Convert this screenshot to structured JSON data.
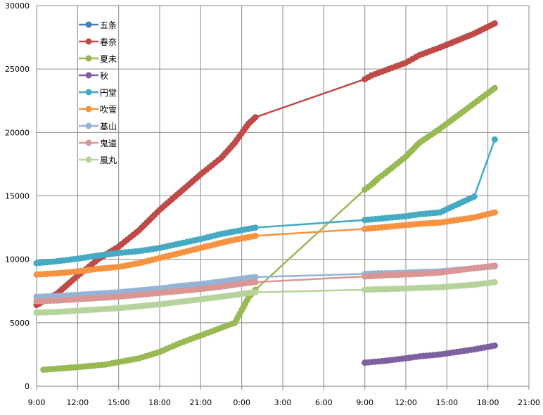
{
  "chart_data": {
    "type": "line",
    "title": "",
    "xlabel": "",
    "ylabel": "",
    "ylim": [
      0,
      30000
    ],
    "yticks": [
      0,
      5000,
      10000,
      15000,
      20000,
      25000,
      30000
    ],
    "xlim": [
      9,
      45
    ],
    "xticks": [
      9,
      12,
      15,
      18,
      21,
      24,
      27,
      30,
      33,
      36,
      39,
      42,
      45
    ],
    "xtick_labels": [
      "9:00",
      "12:00",
      "15:00",
      "18:00",
      "21:00",
      "0:00",
      "3:00",
      "6:00",
      "9:00",
      "12:00",
      "15:00",
      "18:00",
      "21:00"
    ],
    "grid": true,
    "legend_position": "top-left",
    "series": [
      {
        "name": "五条",
        "color": "#4a7ebb",
        "points": []
      },
      {
        "name": "春奈",
        "color": "#be4b48",
        "points": [
          [
            9.0,
            6400
          ],
          [
            10.5,
            7300
          ],
          [
            12.0,
            8700
          ],
          [
            13.5,
            10000
          ],
          [
            15.0,
            11000
          ],
          [
            16.5,
            12300
          ],
          [
            18.0,
            13900
          ],
          [
            19.5,
            15300
          ],
          [
            21.0,
            16700
          ],
          [
            22.5,
            18000
          ],
          [
            23.5,
            19200
          ],
          [
            24.1,
            20100
          ],
          [
            24.5,
            20700
          ],
          [
            25.0,
            21200
          ],
          [
            33.0,
            24200
          ],
          [
            33.5,
            24500
          ],
          [
            34.0,
            24700
          ],
          [
            34.5,
            24900
          ],
          [
            36.0,
            25500
          ],
          [
            37.0,
            26100
          ],
          [
            38.5,
            26700
          ],
          [
            41.0,
            27800
          ],
          [
            42.5,
            28600
          ]
        ]
      },
      {
        "name": "夏未",
        "color": "#98b954",
        "points": [
          [
            9.5,
            1300
          ],
          [
            12.0,
            1500
          ],
          [
            14.0,
            1700
          ],
          [
            15.0,
            1900
          ],
          [
            16.5,
            2200
          ],
          [
            18.0,
            2700
          ],
          [
            19.5,
            3400
          ],
          [
            21.0,
            4000
          ],
          [
            22.5,
            4600
          ],
          [
            23.5,
            5000
          ],
          [
            24.0,
            6000
          ],
          [
            24.5,
            7000
          ],
          [
            25.0,
            7600
          ],
          [
            33.0,
            15500
          ],
          [
            33.5,
            15900
          ],
          [
            34.0,
            16400
          ],
          [
            34.5,
            16800
          ],
          [
            36.0,
            18100
          ],
          [
            37.0,
            19200
          ],
          [
            38.5,
            20300
          ],
          [
            41.0,
            22300
          ],
          [
            42.5,
            23500
          ]
        ]
      },
      {
        "name": "秋",
        "color": "#7d60a0",
        "points": [
          [
            33.0,
            1850
          ],
          [
            33.5,
            1900
          ],
          [
            34.0,
            1950
          ],
          [
            34.5,
            2000
          ],
          [
            36.0,
            2200
          ],
          [
            37.0,
            2350
          ],
          [
            38.5,
            2500
          ],
          [
            41.0,
            2900
          ],
          [
            42.5,
            3200
          ]
        ]
      },
      {
        "name": "円堂",
        "color": "#46aac5",
        "points": [
          [
            9.0,
            9700
          ],
          [
            10.5,
            9850
          ],
          [
            12.0,
            10050
          ],
          [
            13.5,
            10300
          ],
          [
            15.0,
            10500
          ],
          [
            16.5,
            10650
          ],
          [
            18.0,
            10900
          ],
          [
            19.5,
            11250
          ],
          [
            21.0,
            11600
          ],
          [
            22.5,
            12000
          ],
          [
            23.5,
            12200
          ],
          [
            24.5,
            12400
          ],
          [
            25.0,
            12500
          ],
          [
            33.0,
            13100
          ],
          [
            34.0,
            13200
          ],
          [
            34.5,
            13250
          ],
          [
            36.0,
            13400
          ],
          [
            37.0,
            13550
          ],
          [
            38.5,
            13700
          ],
          [
            41.0,
            14950
          ],
          [
            42.5,
            19450
          ]
        ]
      },
      {
        "name": "吹雪",
        "color": "#f69240",
        "points": [
          [
            9.0,
            8800
          ],
          [
            10.5,
            8900
          ],
          [
            12.0,
            9050
          ],
          [
            13.5,
            9250
          ],
          [
            15.0,
            9400
          ],
          [
            16.5,
            9700
          ],
          [
            18.0,
            10100
          ],
          [
            19.5,
            10500
          ],
          [
            21.0,
            10900
          ],
          [
            22.5,
            11300
          ],
          [
            23.5,
            11550
          ],
          [
            24.5,
            11750
          ],
          [
            25.0,
            11850
          ],
          [
            33.0,
            12400
          ],
          [
            34.0,
            12500
          ],
          [
            34.5,
            12550
          ],
          [
            36.0,
            12700
          ],
          [
            37.0,
            12800
          ],
          [
            38.5,
            12900
          ],
          [
            41.0,
            13300
          ],
          [
            42.5,
            13700
          ]
        ]
      },
      {
        "name": "基山",
        "color": "#95b3d7",
        "points": [
          [
            9.0,
            7050
          ],
          [
            10.5,
            7100
          ],
          [
            12.0,
            7200
          ],
          [
            13.5,
            7300
          ],
          [
            15.0,
            7400
          ],
          [
            16.5,
            7550
          ],
          [
            18.0,
            7700
          ],
          [
            19.5,
            7900
          ],
          [
            21.0,
            8050
          ],
          [
            22.5,
            8250
          ],
          [
            23.5,
            8400
          ],
          [
            24.5,
            8550
          ],
          [
            25.0,
            8600
          ],
          [
            33.0,
            8850
          ],
          [
            34.0,
            8900
          ],
          [
            34.5,
            8900
          ],
          [
            36.0,
            8950
          ],
          [
            37.0,
            9000
          ],
          [
            38.5,
            9050
          ],
          [
            41.0,
            9300
          ],
          [
            42.5,
            9450
          ]
        ]
      },
      {
        "name": "鬼道",
        "color": "#d99694",
        "points": [
          [
            9.0,
            6700
          ],
          [
            10.5,
            6750
          ],
          [
            12.0,
            6850
          ],
          [
            13.5,
            6950
          ],
          [
            15.0,
            7050
          ],
          [
            16.5,
            7200
          ],
          [
            18.0,
            7350
          ],
          [
            19.5,
            7500
          ],
          [
            21.0,
            7650
          ],
          [
            22.5,
            7850
          ],
          [
            23.5,
            8000
          ],
          [
            24.5,
            8150
          ],
          [
            25.0,
            8200
          ],
          [
            33.0,
            8650
          ],
          [
            34.0,
            8700
          ],
          [
            34.5,
            8750
          ],
          [
            36.0,
            8800
          ],
          [
            37.0,
            8850
          ],
          [
            38.5,
            8950
          ],
          [
            41.0,
            9300
          ],
          [
            42.5,
            9500
          ]
        ]
      },
      {
        "name": "風丸",
        "color": "#b7d39c",
        "points": [
          [
            9.0,
            5800
          ],
          [
            10.5,
            5850
          ],
          [
            12.0,
            5950
          ],
          [
            13.5,
            6050
          ],
          [
            15.0,
            6150
          ],
          [
            16.5,
            6300
          ],
          [
            18.0,
            6450
          ],
          [
            19.5,
            6650
          ],
          [
            21.0,
            6850
          ],
          [
            22.5,
            7050
          ],
          [
            23.5,
            7200
          ],
          [
            24.5,
            7350
          ],
          [
            25.0,
            7400
          ],
          [
            33.0,
            7600
          ],
          [
            34.0,
            7650
          ],
          [
            34.5,
            7650
          ],
          [
            36.0,
            7700
          ],
          [
            37.0,
            7750
          ],
          [
            38.5,
            7800
          ],
          [
            41.0,
            8000
          ],
          [
            42.5,
            8200
          ]
        ]
      }
    ]
  }
}
